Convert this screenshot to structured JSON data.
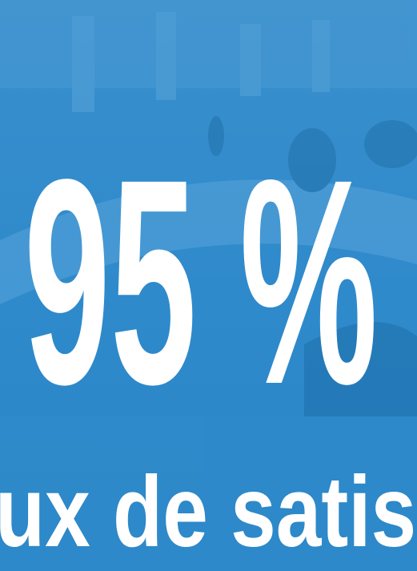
{
  "headline": {
    "value": "95 %",
    "caption": "ux de satisf"
  }
}
